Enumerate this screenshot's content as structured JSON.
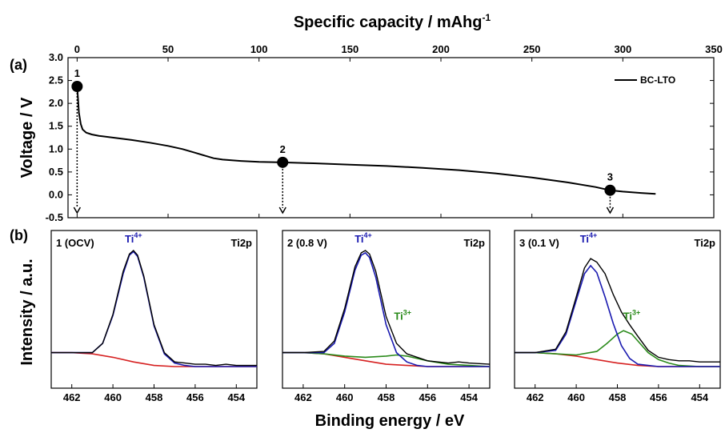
{
  "labels": {
    "panel_a": "(a)",
    "panel_b": "(b)",
    "top_axis_title": "Specific capacity / mAhg",
    "top_axis_title_sup": "-1",
    "y_axis_title_a": "Voltage / V",
    "y_axis_title_b": "Intensity / a.u.",
    "bottom_axis_title": "Binding energy / eV",
    "legend": "BC-LTO"
  },
  "colors": {
    "line": "#000000",
    "ti4": "#1a1ab0",
    "ti3": "#2a8a1a",
    "background": "#d62020"
  },
  "chart_data": [
    {
      "type": "line",
      "title": "",
      "xlabel": "Specific capacity / mAhg-1",
      "ylabel": "Voltage / V",
      "xlim": [
        -5,
        350
      ],
      "ylim": [
        -0.5,
        3.0
      ],
      "xticks": [
        0,
        50,
        100,
        150,
        200,
        250,
        300,
        350
      ],
      "yticks": [
        "-0.5",
        "0.0",
        "0.5",
        "1.0",
        "1.5",
        "2.0",
        "2.5",
        "3.0"
      ],
      "legend_position": "top-right",
      "series": [
        {
          "name": "BC-LTO",
          "x": [
            0,
            0.5,
            1,
            2,
            3,
            5,
            8,
            12,
            20,
            30,
            40,
            50,
            58,
            65,
            70,
            75,
            80,
            90,
            100,
            113,
            130,
            150,
            170,
            190,
            210,
            230,
            250,
            270,
            285,
            293,
            300,
            310,
            318
          ],
          "y": [
            2.37,
            2.1,
            1.8,
            1.55,
            1.43,
            1.36,
            1.32,
            1.29,
            1.25,
            1.2,
            1.14,
            1.07,
            1.0,
            0.92,
            0.86,
            0.8,
            0.77,
            0.74,
            0.72,
            0.71,
            0.69,
            0.66,
            0.63,
            0.59,
            0.54,
            0.47,
            0.38,
            0.27,
            0.17,
            0.1,
            0.07,
            0.04,
            0.02
          ]
        }
      ],
      "markers": [
        {
          "label": "1",
          "x": 0,
          "y": 2.37
        },
        {
          "label": "2",
          "x": 113,
          "y": 0.71
        },
        {
          "label": "3",
          "x": 293,
          "y": 0.1
        }
      ]
    },
    {
      "type": "line",
      "title": "1 (OCV)",
      "corner_label": "Ti2p",
      "xlabel": "Binding energy / eV",
      "xlim": [
        463,
        453
      ],
      "xticks": [
        462,
        460,
        458,
        456,
        454
      ],
      "series": [
        {
          "name": "measured",
          "color": "#000000",
          "x": [
            463,
            462,
            461,
            460.5,
            460,
            459.5,
            459.2,
            459,
            458.8,
            458.5,
            458,
            457.5,
            457,
            456.5,
            456,
            455.5,
            455,
            454.5,
            454,
            453
          ],
          "y": [
            0.12,
            0.12,
            0.12,
            0.2,
            0.45,
            0.82,
            0.97,
            1.0,
            0.96,
            0.78,
            0.36,
            0.12,
            0.04,
            0.03,
            0.02,
            0.02,
            0.01,
            0.02,
            0.01,
            0.01
          ]
        },
        {
          "name": "Ti4+ fit",
          "color": "#1a1ab0",
          "x": [
            463,
            462,
            461,
            460.5,
            460,
            459.5,
            459.2,
            459,
            458.8,
            458.5,
            458,
            457.5,
            457,
            456.5,
            456,
            455,
            454,
            453
          ],
          "y": [
            0.12,
            0.12,
            0.12,
            0.2,
            0.44,
            0.8,
            0.96,
            0.99,
            0.95,
            0.77,
            0.35,
            0.11,
            0.03,
            0.01,
            0.0,
            0.0,
            0.0,
            0.0
          ]
        },
        {
          "name": "background",
          "color": "#d62020",
          "x": [
            463,
            462,
            461,
            460,
            459,
            458,
            457,
            456,
            455,
            454,
            453
          ],
          "y": [
            0.12,
            0.12,
            0.11,
            0.08,
            0.04,
            0.01,
            0.0,
            0.0,
            0.0,
            0.0,
            0.0
          ]
        }
      ],
      "peak_labels": [
        {
          "text": "Ti",
          "sup": "4+",
          "x": 459,
          "color": "#1a1ab0"
        }
      ]
    },
    {
      "type": "line",
      "title": "2 (0.8 V)",
      "corner_label": "Ti2p",
      "xlabel": "Binding energy / eV",
      "xlim": [
        463,
        453
      ],
      "xticks": [
        462,
        460,
        458,
        456,
        454
      ],
      "series": [
        {
          "name": "measured",
          "color": "#000000",
          "x": [
            463,
            462,
            461,
            460.5,
            460,
            459.5,
            459.2,
            459,
            458.8,
            458.5,
            458,
            457.5,
            457,
            456.5,
            456,
            455.5,
            455,
            454.5,
            454,
            453
          ],
          "y": [
            0.12,
            0.12,
            0.13,
            0.22,
            0.5,
            0.86,
            0.98,
            1.0,
            0.97,
            0.82,
            0.43,
            0.2,
            0.11,
            0.08,
            0.05,
            0.04,
            0.03,
            0.04,
            0.03,
            0.02
          ]
        },
        {
          "name": "Ti4+ fit",
          "color": "#1a1ab0",
          "x": [
            463,
            462,
            461,
            460.5,
            460,
            459.5,
            459.2,
            459,
            458.8,
            458.5,
            458,
            457.5,
            457,
            456.5,
            456,
            455,
            454,
            453
          ],
          "y": [
            0.12,
            0.12,
            0.12,
            0.2,
            0.47,
            0.83,
            0.96,
            0.98,
            0.94,
            0.77,
            0.36,
            0.12,
            0.04,
            0.01,
            0.0,
            0.0,
            0.0,
            0.0
          ]
        },
        {
          "name": "Ti3+ fit",
          "color": "#2a8a1a",
          "x": [
            463,
            462,
            461,
            460,
            459,
            458,
            457.5,
            457,
            456,
            455,
            454,
            453
          ],
          "y": [
            0.12,
            0.12,
            0.11,
            0.09,
            0.08,
            0.09,
            0.1,
            0.09,
            0.05,
            0.02,
            0.01,
            0.0
          ]
        },
        {
          "name": "background",
          "color": "#d62020",
          "x": [
            463,
            462,
            461,
            460,
            459,
            458,
            457,
            456,
            455,
            454,
            453
          ],
          "y": [
            0.12,
            0.12,
            0.11,
            0.08,
            0.05,
            0.02,
            0.01,
            0.0,
            0.0,
            0.0,
            0.0
          ]
        }
      ],
      "peak_labels": [
        {
          "text": "Ti",
          "sup": "4+",
          "x": 459.1,
          "color": "#1a1ab0"
        },
        {
          "text": "Ti",
          "sup": "3+",
          "x": 457.2,
          "color": "#2a8a1a"
        }
      ]
    },
    {
      "type": "line",
      "title": "3 (0.1 V)",
      "corner_label": "Ti2p",
      "xlabel": "Binding energy / eV",
      "xlim": [
        463,
        453
      ],
      "xticks": [
        462,
        460,
        458,
        456,
        454
      ],
      "series": [
        {
          "name": "measured",
          "color": "#000000",
          "x": [
            463,
            462,
            461,
            460.5,
            460,
            459.6,
            459.3,
            459,
            458.6,
            458.2,
            457.8,
            457.4,
            457,
            456.5,
            456,
            455.5,
            455,
            454.5,
            454,
            453
          ],
          "y": [
            0.12,
            0.12,
            0.15,
            0.3,
            0.6,
            0.85,
            0.93,
            0.9,
            0.8,
            0.62,
            0.47,
            0.36,
            0.26,
            0.14,
            0.08,
            0.06,
            0.05,
            0.05,
            0.04,
            0.04
          ]
        },
        {
          "name": "Ti4+ fit",
          "color": "#1a1ab0",
          "x": [
            463,
            462,
            461,
            460.5,
            460,
            459.6,
            459.3,
            459,
            458.6,
            458.2,
            457.8,
            457.4,
            457,
            456.5,
            456,
            455,
            454,
            453
          ],
          "y": [
            0.12,
            0.12,
            0.14,
            0.28,
            0.57,
            0.8,
            0.87,
            0.81,
            0.6,
            0.37,
            0.18,
            0.07,
            0.02,
            0.01,
            0.0,
            0.0,
            0.0,
            0.0
          ]
        },
        {
          "name": "Ti3+ fit",
          "color": "#2a8a1a",
          "x": [
            463,
            462,
            461,
            460,
            459,
            458.5,
            458,
            457.7,
            457.3,
            457,
            456.5,
            456,
            455.5,
            455,
            454,
            453
          ],
          "y": [
            0.12,
            0.12,
            0.11,
            0.1,
            0.13,
            0.2,
            0.28,
            0.31,
            0.28,
            0.22,
            0.12,
            0.06,
            0.03,
            0.01,
            0.0,
            0.0
          ]
        },
        {
          "name": "background",
          "color": "#d62020",
          "x": [
            463,
            462,
            461,
            460,
            459,
            458,
            457,
            456,
            455,
            454,
            453
          ],
          "y": [
            0.12,
            0.12,
            0.11,
            0.09,
            0.06,
            0.03,
            0.01,
            0.0,
            0.0,
            0.0,
            0.0
          ]
        }
      ],
      "peak_labels": [
        {
          "text": "Ti",
          "sup": "4+",
          "x": 459.4,
          "color": "#1a1ab0"
        },
        {
          "text": "Ti",
          "sup": "3+",
          "x": 457.3,
          "color": "#2a8a1a"
        }
      ]
    }
  ]
}
